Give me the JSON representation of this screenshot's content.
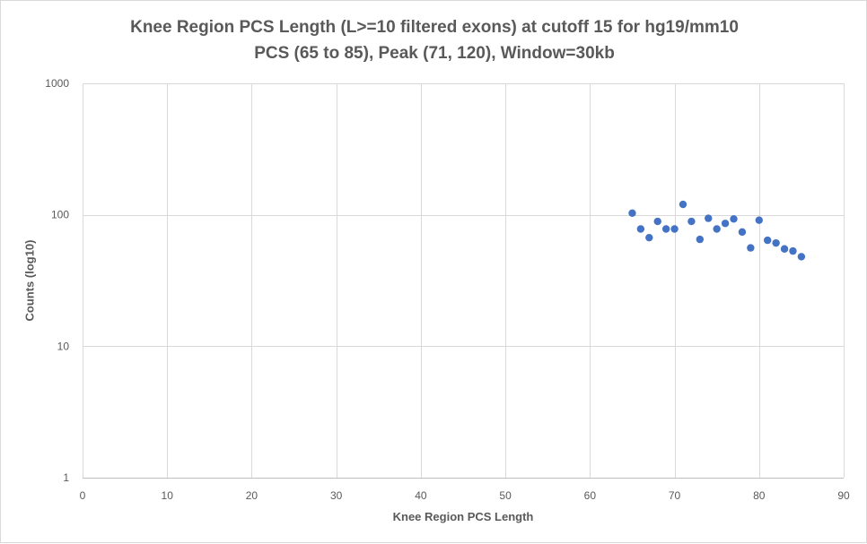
{
  "chart_data": {
    "type": "scatter",
    "title": "Knee Region PCS Length (L>=10 filtered exons) at cutoff 15 for hg19/mm10",
    "subtitle": "PCS (65 to 85), Peak (71, 120), Window=30kb",
    "xlabel": "Knee Region PCS Length",
    "ylabel": "Counts (log10)",
    "xlim": [
      0,
      90
    ],
    "ylim": [
      1,
      1000
    ],
    "yscale": "log",
    "x_ticks": [
      0,
      10,
      20,
      30,
      40,
      50,
      60,
      70,
      80,
      90
    ],
    "y_ticks": [
      1,
      10,
      100,
      1000
    ],
    "grid": true,
    "marker_color": "#4472C4",
    "series": [
      {
        "x": [
          65,
          66,
          67,
          68,
          69,
          70,
          71,
          72,
          73,
          74,
          75,
          76,
          77,
          78,
          79,
          80,
          81,
          82,
          83,
          84,
          85
        ],
        "y": [
          103,
          78,
          67,
          89,
          78,
          78,
          120,
          89,
          65,
          94,
          78,
          86,
          93,
          74,
          56,
          91,
          64,
          61,
          55,
          53,
          48
        ]
      }
    ]
  }
}
